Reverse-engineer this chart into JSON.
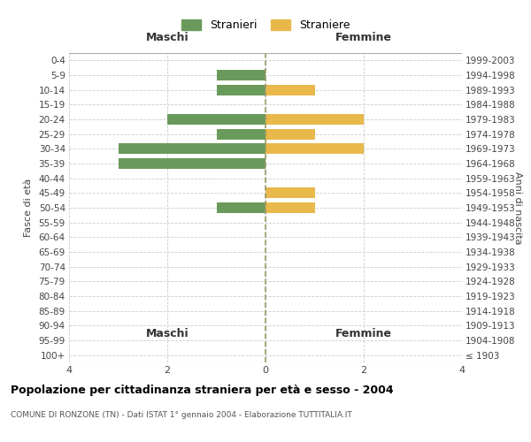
{
  "age_groups": [
    "100+",
    "95-99",
    "90-94",
    "85-89",
    "80-84",
    "75-79",
    "70-74",
    "65-69",
    "60-64",
    "55-59",
    "50-54",
    "45-49",
    "40-44",
    "35-39",
    "30-34",
    "25-29",
    "20-24",
    "15-19",
    "10-14",
    "5-9",
    "0-4"
  ],
  "birth_years": [
    "≤ 1903",
    "1904-1908",
    "1909-1913",
    "1914-1918",
    "1919-1923",
    "1924-1928",
    "1929-1933",
    "1934-1938",
    "1939-1943",
    "1944-1948",
    "1949-1953",
    "1954-1958",
    "1959-1963",
    "1964-1968",
    "1969-1973",
    "1974-1978",
    "1979-1983",
    "1984-1988",
    "1989-1993",
    "1994-1998",
    "1999-2003"
  ],
  "males": [
    0,
    0,
    0,
    0,
    0,
    0,
    0,
    0,
    0,
    0,
    1,
    0,
    0,
    3,
    3,
    1,
    2,
    0,
    1,
    1,
    0
  ],
  "females": [
    0,
    0,
    0,
    0,
    0,
    0,
    0,
    0,
    0,
    0,
    1,
    1,
    0,
    0,
    2,
    1,
    2,
    0,
    1,
    0,
    0
  ],
  "male_color": "#6a9a5b",
  "female_color": "#e8b84b",
  "male_label": "Stranieri",
  "female_label": "Straniere",
  "xlabel_left": "Maschi",
  "xlabel_right": "Femmine",
  "ylabel_left": "Fasce di età",
  "ylabel_right": "Anni di nascita",
  "title": "Popolazione per cittadinanza straniera per età e sesso - 2004",
  "subtitle": "COMUNE DI RONZONE (TN) - Dati ISTAT 1° gennaio 2004 - Elaborazione TUTTITALIA.IT",
  "xlim": 4,
  "background_color": "#ffffff",
  "grid_color": "#cccccc"
}
